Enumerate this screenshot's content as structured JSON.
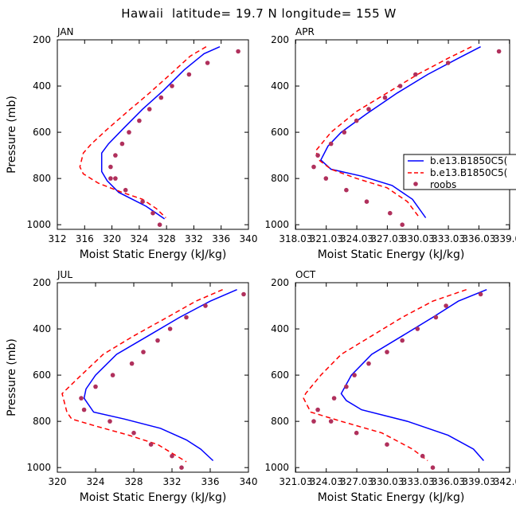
{
  "figure": {
    "title": "Hawaii  latitude= 19.7 N longitude= 155 W",
    "legend": {
      "placement": "right of APR panel",
      "entries": [
        {
          "label": "b.e13.B1850C5(",
          "color": "#0000ff",
          "style": "solid"
        },
        {
          "label": "b.e13.B1850C5(",
          "color": "#ff0000",
          "style": "dashed"
        },
        {
          "label": "roobs",
          "color": "#b0305c",
          "style": "marker"
        }
      ]
    }
  },
  "chart_data": [
    {
      "type": "line",
      "title": "JAN",
      "xlabel": "Moist Static Energy (kJ/kg)",
      "ylabel": "Pressure (mb)",
      "xlim": [
        312,
        340
      ],
      "ylim": [
        200,
        1020
      ],
      "xticks": [
        312,
        316,
        320,
        324,
        328,
        332,
        336,
        340
      ],
      "xtick_labels": [
        "312",
        "316",
        "320",
        "324",
        "328",
        "332",
        "336",
        "340"
      ],
      "yticks": [
        200,
        400,
        600,
        800,
        1000
      ],
      "series": [
        {
          "name": "b.e13.B1850C5( (solid)",
          "color": "#0000ff",
          "dash": false,
          "x": [
            335.8,
            333.5,
            330.6,
            327.5,
            324.5,
            321.8,
            319.5,
            318.5,
            318.5,
            319.3,
            321.0,
            323.0,
            325.0,
            326.5,
            327.7
          ],
          "y": [
            230,
            260,
            330,
            420,
            500,
            580,
            650,
            690,
            770,
            810,
            860,
            890,
            920,
            950,
            975
          ]
        },
        {
          "name": "b.e13.B1850C5( (dashed)",
          "color": "#ff0000",
          "dash": true,
          "x": [
            333.8,
            331.5,
            328.9,
            325.5,
            322.3,
            319.2,
            317.0,
            315.8,
            315.3,
            315.8,
            318.0,
            321.5,
            324.5,
            326.5,
            327.9
          ],
          "y": [
            230,
            270,
            340,
            430,
            510,
            590,
            650,
            690,
            750,
            780,
            820,
            860,
            890,
            930,
            970
          ]
        },
        {
          "name": "roobs",
          "color": "#b0305c",
          "marker": true,
          "x": [
            338.5,
            334.0,
            331.3,
            328.8,
            327.2,
            325.5,
            324.0,
            322.5,
            321.5,
            320.5,
            319.8,
            319.8,
            320.5,
            322.0,
            324.5,
            326.0,
            327.0
          ],
          "y": [
            250,
            300,
            350,
            400,
            450,
            500,
            550,
            600,
            650,
            700,
            750,
            800,
            800,
            850,
            900,
            950,
            1000
          ]
        }
      ]
    },
    {
      "type": "line",
      "title": "APR",
      "xlabel": "Moist Static Energy (kJ/kg)",
      "ylabel": "Pressure (mb)",
      "xlim": [
        318.0,
        339.05
      ],
      "ylim": [
        200,
        1020
      ],
      "xticks": [
        318.03,
        321.03,
        324.03,
        327.03,
        330.03,
        333.03,
        336.03,
        339.03
      ],
      "xtick_labels": [
        "318.03",
        "321.03",
        "324.03",
        "327.03",
        "330.03",
        "333.03",
        "336.03",
        "339.0"
      ],
      "yticks": [
        200,
        400,
        600,
        800,
        1000
      ],
      "series": [
        {
          "name": "b.e13.B1850C5( (solid)",
          "color": "#0000ff",
          "dash": false,
          "x": [
            336.2,
            334.0,
            331.0,
            328.0,
            325.0,
            322.5,
            321.2,
            320.5,
            321.5,
            324.5,
            327.5,
            329.5,
            330.8
          ],
          "y": [
            230,
            280,
            350,
            430,
            520,
            600,
            660,
            720,
            760,
            790,
            830,
            890,
            970
          ]
        },
        {
          "name": "b.e13.B1850C5( (dashed)",
          "color": "#ff0000",
          "dash": true,
          "x": [
            335.3,
            333.0,
            330.0,
            327.0,
            324.0,
            321.5,
            320.0,
            320.3,
            321.5,
            324.0,
            327.0,
            329.0,
            330.2
          ],
          "y": [
            230,
            280,
            350,
            430,
            510,
            600,
            680,
            720,
            760,
            800,
            840,
            900,
            970
          ]
        },
        {
          "name": "roobs",
          "color": "#b0305c",
          "marker": true,
          "x": [
            338.0,
            333.0,
            329.8,
            328.3,
            326.8,
            325.2,
            324.0,
            322.8,
            321.5,
            320.2,
            319.8,
            321.0,
            323.0,
            325.0,
            327.3,
            328.5
          ],
          "y": [
            250,
            300,
            350,
            400,
            450,
            500,
            550,
            600,
            650,
            700,
            750,
            800,
            850,
            900,
            950,
            1000
          ]
        }
      ]
    },
    {
      "type": "line",
      "title": "JUL",
      "xlabel": "Moist Static Energy (kJ/kg)",
      "ylabel": "Pressure (mb)",
      "xlim": [
        320,
        340
      ],
      "ylim": [
        200,
        1020
      ],
      "xticks": [
        320,
        324,
        328,
        332,
        336,
        340
      ],
      "xtick_labels": [
        "320",
        "324",
        "328",
        "332",
        "336",
        "340"
      ],
      "yticks": [
        200,
        400,
        600,
        800,
        1000
      ],
      "series": [
        {
          "name": "b.e13.B1850C5( (solid)",
          "color": "#0000ff",
          "dash": false,
          "x": [
            338.8,
            336.0,
            332.8,
            329.5,
            326.2,
            324.0,
            323.0,
            322.8,
            323.8,
            327.0,
            330.8,
            333.5,
            335.0,
            336.3
          ],
          "y": [
            230,
            280,
            350,
            430,
            510,
            600,
            660,
            700,
            760,
            790,
            830,
            880,
            920,
            970
          ]
        },
        {
          "name": "b.e13.B1850C5( (dashed)",
          "color": "#ff0000",
          "dash": true,
          "x": [
            337.3,
            334.5,
            331.5,
            328.0,
            324.8,
            322.5,
            321.0,
            320.5,
            321.0,
            321.5,
            324.0,
            327.5,
            330.5,
            332.5,
            333.5
          ],
          "y": [
            230,
            280,
            350,
            430,
            510,
            600,
            660,
            680,
            760,
            790,
            820,
            860,
            900,
            950,
            975
          ]
        },
        {
          "name": "roobs",
          "color": "#b0305c",
          "marker": true,
          "x": [
            339.5,
            335.5,
            333.5,
            331.8,
            330.5,
            329.0,
            327.8,
            325.8,
            324.0,
            322.5,
            322.8,
            325.5,
            328.0,
            329.8,
            332.0,
            333.0
          ],
          "y": [
            250,
            300,
            350,
            400,
            450,
            500,
            550,
            600,
            650,
            700,
            750,
            800,
            850,
            900,
            950,
            1000
          ]
        }
      ]
    },
    {
      "type": "line",
      "title": "OCT",
      "xlabel": "Moist Static Energy (kJ/kg)",
      "ylabel": "Pressure (mb)",
      "xlim": [
        321.0,
        342.05
      ],
      "ylim": [
        200,
        1020
      ],
      "xticks": [
        321.03,
        324.03,
        327.03,
        330.03,
        333.03,
        336.03,
        339.03,
        342.03
      ],
      "xtick_labels": [
        "321.03",
        "324.03",
        "327.03",
        "330.03",
        "333.03",
        "336.03",
        "339.03",
        "342.0"
      ],
      "yticks": [
        200,
        400,
        600,
        800,
        1000
      ],
      "series": [
        {
          "name": "b.e13.B1850C5( (solid)",
          "color": "#0000ff",
          "dash": false,
          "x": [
            339.8,
            337.0,
            334.5,
            331.5,
            328.5,
            326.5,
            325.5,
            326.0,
            327.5,
            332.0,
            336.0,
            338.5,
            339.5
          ],
          "y": [
            230,
            280,
            350,
            430,
            510,
            600,
            680,
            710,
            750,
            800,
            860,
            920,
            970
          ]
        },
        {
          "name": "b.e13.B1850C5( (dashed)",
          "color": "#ff0000",
          "dash": true,
          "x": [
            337.8,
            334.5,
            331.5,
            328.5,
            325.5,
            323.5,
            322.0,
            321.8,
            322.5,
            325.5,
            329.5,
            332.5,
            334.0
          ],
          "y": [
            230,
            280,
            350,
            430,
            510,
            600,
            680,
            700,
            760,
            800,
            850,
            920,
            970
          ]
        },
        {
          "name": "roobs",
          "color": "#b0305c",
          "marker": true,
          "x": [
            339.2,
            335.8,
            334.8,
            333.0,
            331.5,
            330.0,
            328.2,
            326.8,
            326.0,
            324.8,
            323.2,
            322.8,
            324.5,
            327.0,
            330.0,
            333.5,
            334.5
          ],
          "y": [
            250,
            300,
            350,
            400,
            450,
            500,
            550,
            600,
            650,
            700,
            750,
            800,
            800,
            850,
            900,
            950,
            1000
          ]
        }
      ]
    }
  ]
}
